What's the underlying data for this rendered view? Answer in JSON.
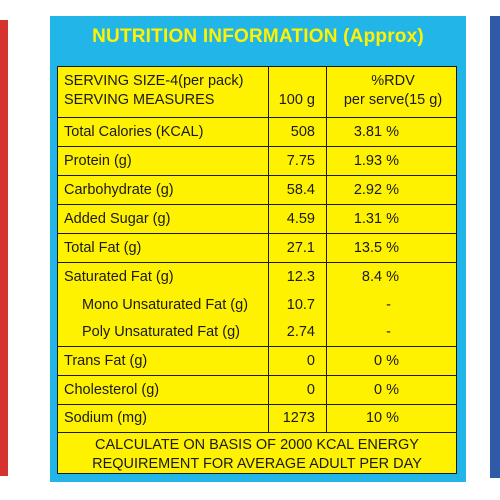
{
  "title": "NUTRITION INFORMATION (Approx)",
  "header": {
    "serving_size": "SERVING SIZE-4(per pack)",
    "serving_measures": "SERVING MEASURES",
    "col_100g": "100 g",
    "col_rdv": "%RDV",
    "col_rdv_sub": "per serve(15 g)"
  },
  "rows": [
    {
      "label": "Total Calories (KCAL)",
      "per100": "508",
      "rdv": "3.81 %"
    },
    {
      "label": "Protein (g)",
      "per100": "7.75",
      "rdv": "1.93 %"
    },
    {
      "label": "Carbohydrate (g)",
      "per100": "58.4",
      "rdv": "2.92 %"
    },
    {
      "label": "Added Sugar (g)",
      "per100": "4.59",
      "rdv": "1.31 %"
    },
    {
      "label": "Total Fat (g)",
      "per100": "27.1",
      "rdv": "13.5 %"
    },
    {
      "label": "Saturated Fat (g)",
      "per100": "12.3",
      "rdv": "8.4 %"
    },
    {
      "label": "Mono Unsaturated Fat (g)",
      "per100": "10.7",
      "rdv": "-"
    },
    {
      "label": "Poly Unsaturated Fat (g)",
      "per100": "2.74",
      "rdv": "-"
    },
    {
      "label": "Trans Fat (g)",
      "per100": "0",
      "rdv": "0 %"
    },
    {
      "label": "Cholesterol (g)",
      "per100": "0",
      "rdv": "0 %"
    },
    {
      "label": "Sodium (mg)",
      "per100": "1273",
      "rdv": "10 %"
    }
  ],
  "footer": {
    "line1": "CALCULATE ON BASIS OF 2000 KCAL ENERGY",
    "line2": "REQUIREMENT FOR AVERAGE ADULT PER DAY"
  },
  "colors": {
    "panel_blue": "#22b5e8",
    "sheet_yellow": "#fff200",
    "title_yellow": "#fff200",
    "edge_red": "#d6322e",
    "edge_blue": "#2f5aa8"
  }
}
